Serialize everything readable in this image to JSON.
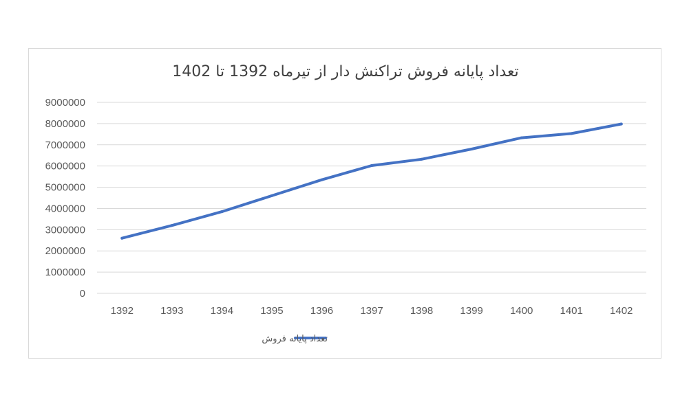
{
  "chart_data": {
    "type": "line",
    "title": "تعداد پایانه فروش تراکنش دار از تیرماه 1392 تا 1402",
    "categories": [
      "1392",
      "1393",
      "1394",
      "1395",
      "1396",
      "1397",
      "1398",
      "1399",
      "1400",
      "1401",
      "1402"
    ],
    "series": [
      {
        "name": "تعداد پایانه فروش",
        "color": "#4472c4",
        "values": [
          2600000,
          3200000,
          3850000,
          4600000,
          5350000,
          6020000,
          6320000,
          6800000,
          7330000,
          7530000,
          7980000
        ]
      }
    ],
    "ylim": [
      0,
      9000000
    ],
    "yticks": [
      "9000000",
      "8000000",
      "7000000",
      "6000000",
      "5000000",
      "4000000",
      "3000000",
      "2000000",
      "1000000",
      "0"
    ],
    "grid": true,
    "legend": "bottom"
  }
}
